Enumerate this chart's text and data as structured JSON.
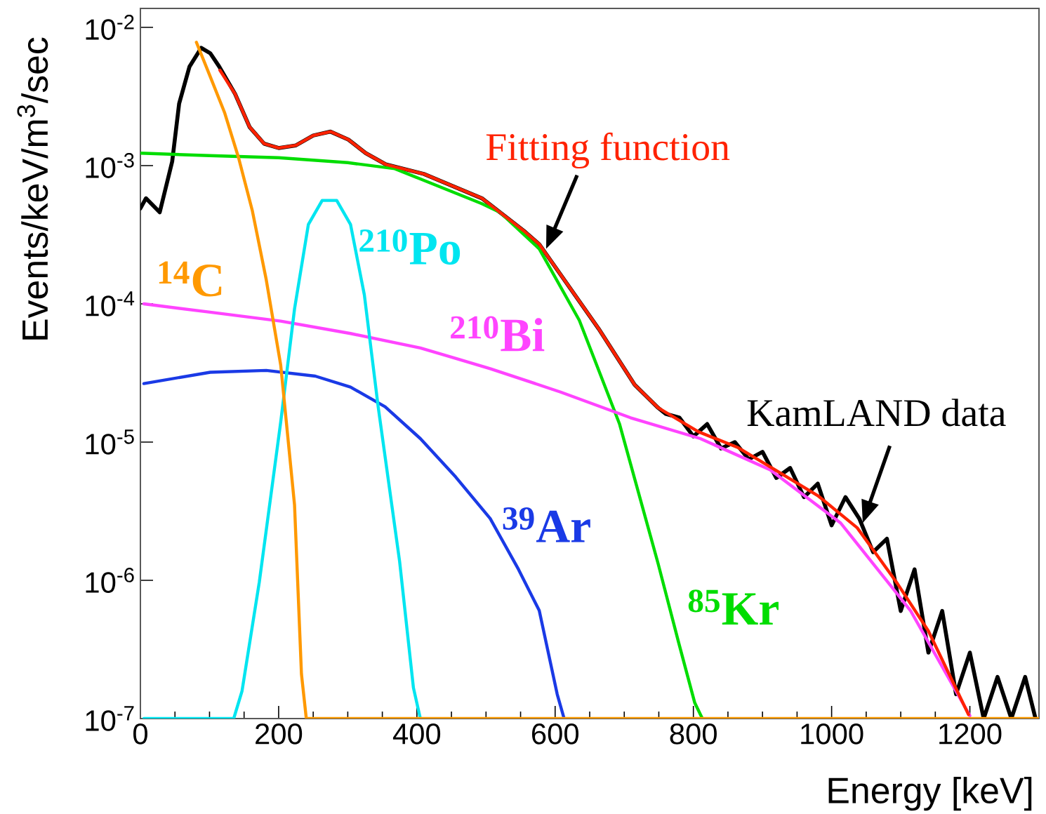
{
  "chart_data": {
    "type": "line",
    "xlabel": "Energy [keV]",
    "ylabel": "Events/keV/m$^{3}$/sec",
    "log": "y",
    "xlim": [
      0,
      1300
    ],
    "ylim": [
      1e-07,
      0.0137
    ],
    "xticks": [
      0,
      200,
      400,
      600,
      800,
      1000,
      1200
    ],
    "yticks": [
      {
        "value": 1e-07,
        "label": "10$^{-7}$"
      },
      {
        "value": 1e-06,
        "label": "10$^{-6}$"
      },
      {
        "value": 1e-05,
        "label": "10$^{-5}$"
      },
      {
        "value": 0.0001,
        "label": "10$^{-4}$"
      },
      {
        "value": 0.001,
        "label": "10$^{-3}$"
      },
      {
        "value": 0.01,
        "label": "10$^{-2}$"
      }
    ],
    "series": [
      {
        "color": "#000000",
        "x": [
          0,
          8,
          28,
          46,
          56,
          71,
          88,
          101,
          114,
          137,
          158,
          179,
          200,
          225,
          250,
          275,
          301,
          326,
          355,
          410,
          494,
          557,
          577,
          663,
          715,
          749,
          760,
          780,
          800,
          820,
          840,
          860,
          880,
          900,
          920,
          940,
          960,
          980,
          1000,
          1020,
          1040,
          1060,
          1080,
          1100,
          1120,
          1140,
          1160,
          1180,
          1200,
          1220,
          1240,
          1260,
          1280,
          1295
        ],
        "values": [
          0.00049,
          0.00058,
          0.00046,
          0.00107,
          0.0028,
          0.0052,
          0.0071,
          0.0065,
          0.0052,
          0.0033,
          0.0019,
          0.00144,
          0.00134,
          0.0014,
          0.00165,
          0.00176,
          0.00154,
          0.00123,
          0.00102,
          0.00087,
          0.00058,
          0.00033,
          0.00027,
          6.6e-05,
          2.6e-05,
          1.77e-05,
          1.6e-05,
          1.5e-05,
          1.1e-05,
          1.35e-05,
          9e-06,
          1e-05,
          7.5e-06,
          8.5e-06,
          5.5e-06,
          6.5e-06,
          4e-06,
          5e-06,
          2.5e-06,
          4e-06,
          2.8e-06,
          1.6e-06,
          2e-06,
          6e-07,
          1.2e-06,
          3e-07,
          6e-07,
          1.5e-07,
          3e-07,
          1e-07,
          2e-07,
          1e-07,
          2e-07,
          1e-07
        ]
      },
      {
        "name": "$^{85}$Kr",
        "color": "#00dd00",
        "x": [
          0,
          100,
          200,
          300,
          368,
          405,
          494,
          520,
          577,
          635,
          693,
          749,
          779,
          802,
          813
        ],
        "values": [
          0.00123,
          0.00118,
          0.00114,
          0.00105,
          0.00095,
          0.0008,
          0.00053,
          0.00046,
          0.00025,
          7.6e-05,
          1.36e-05,
          1.32e-06,
          3.5e-07,
          1.3e-07,
          1e-07
        ]
      },
      {
        "name": "$^{210}$Bi",
        "color": "#ff44ff",
        "x": [
          5,
          101,
          203,
          304,
          405,
          506,
          608,
          709,
          810,
          911,
          1013,
          1114,
          1200
        ],
        "values": [
          0.0001,
          8.7e-05,
          7.5e-05,
          6.1e-05,
          4.8e-05,
          3.4e-05,
          2.3e-05,
          1.5e-05,
          1.06e-05,
          6.3e-06,
          2.6e-06,
          6.05e-07,
          1.05e-07
        ]
      },
      {
        "name": "$^{39}$Ar",
        "color": "#1a3ae6",
        "x": [
          5,
          101,
          182,
          253,
          304,
          354,
          405,
          456,
          506,
          547,
          577,
          603,
          613
        ],
        "values": [
          2.65e-05,
          3.2e-05,
          3.3e-05,
          3e-05,
          2.5e-05,
          1.8e-05,
          1.06e-05,
          5.6e-06,
          2.8e-06,
          1.2e-06,
          6.05e-07,
          1.5e-07,
          1e-07
        ]
      },
      {
        "name": "$^{210}$Po",
        "color": "#00e5f0",
        "x": [
          5,
          135,
          147,
          172,
          203,
          223,
          243,
          263,
          284,
          304,
          324,
          344,
          375,
          395,
          405
        ],
        "values": [
          1e-07,
          1e-07,
          1.58e-07,
          9.7e-07,
          1.4e-05,
          9.2e-05,
          0.000375,
          0.00056,
          0.00056,
          0.000375,
          0.000116,
          1.8e-05,
          1.37e-06,
          1.67e-07,
          1e-07
        ]
      },
      {
        "color": "#ff2200",
        "x": [
          115,
          137,
          158,
          179,
          200,
          225,
          250,
          275,
          301,
          326,
          355,
          410,
          494,
          557,
          577,
          663,
          715,
          749,
          807,
          865,
          923,
          980,
          1037,
          1095,
          1140,
          1198
        ],
        "values": [
          0.0049,
          0.0033,
          0.0019,
          0.00144,
          0.00134,
          0.0014,
          0.00165,
          0.00176,
          0.00154,
          0.00123,
          0.00102,
          0.00087,
          0.00058,
          0.00033,
          0.00027,
          6.6e-05,
          2.6e-05,
          1.77e-05,
          1.19e-05,
          9.1e-06,
          6.1e-06,
          4.1e-06,
          2.4e-06,
          9.5e-07,
          4.3e-07,
          1.07e-07
        ]
      },
      {
        "name": "$^{14}$C",
        "color": "#ff9900",
        "x": [
          81,
          101,
          122,
          142,
          162,
          182,
          203,
          223,
          233,
          240,
          1300
        ],
        "values": [
          0.0078,
          0.0044,
          0.0024,
          0.00114,
          0.00047,
          0.00015,
          3.6e-05,
          3.5e-06,
          2.1e-07,
          1e-07,
          1e-07
        ]
      }
    ],
    "annotations": [
      {
        "text": "Fitting function",
        "x": 587,
        "y": 0.00025
      },
      {
        "text": "KamLAND data",
        "x": 1045,
        "y": 2.6e-06
      }
    ]
  }
}
